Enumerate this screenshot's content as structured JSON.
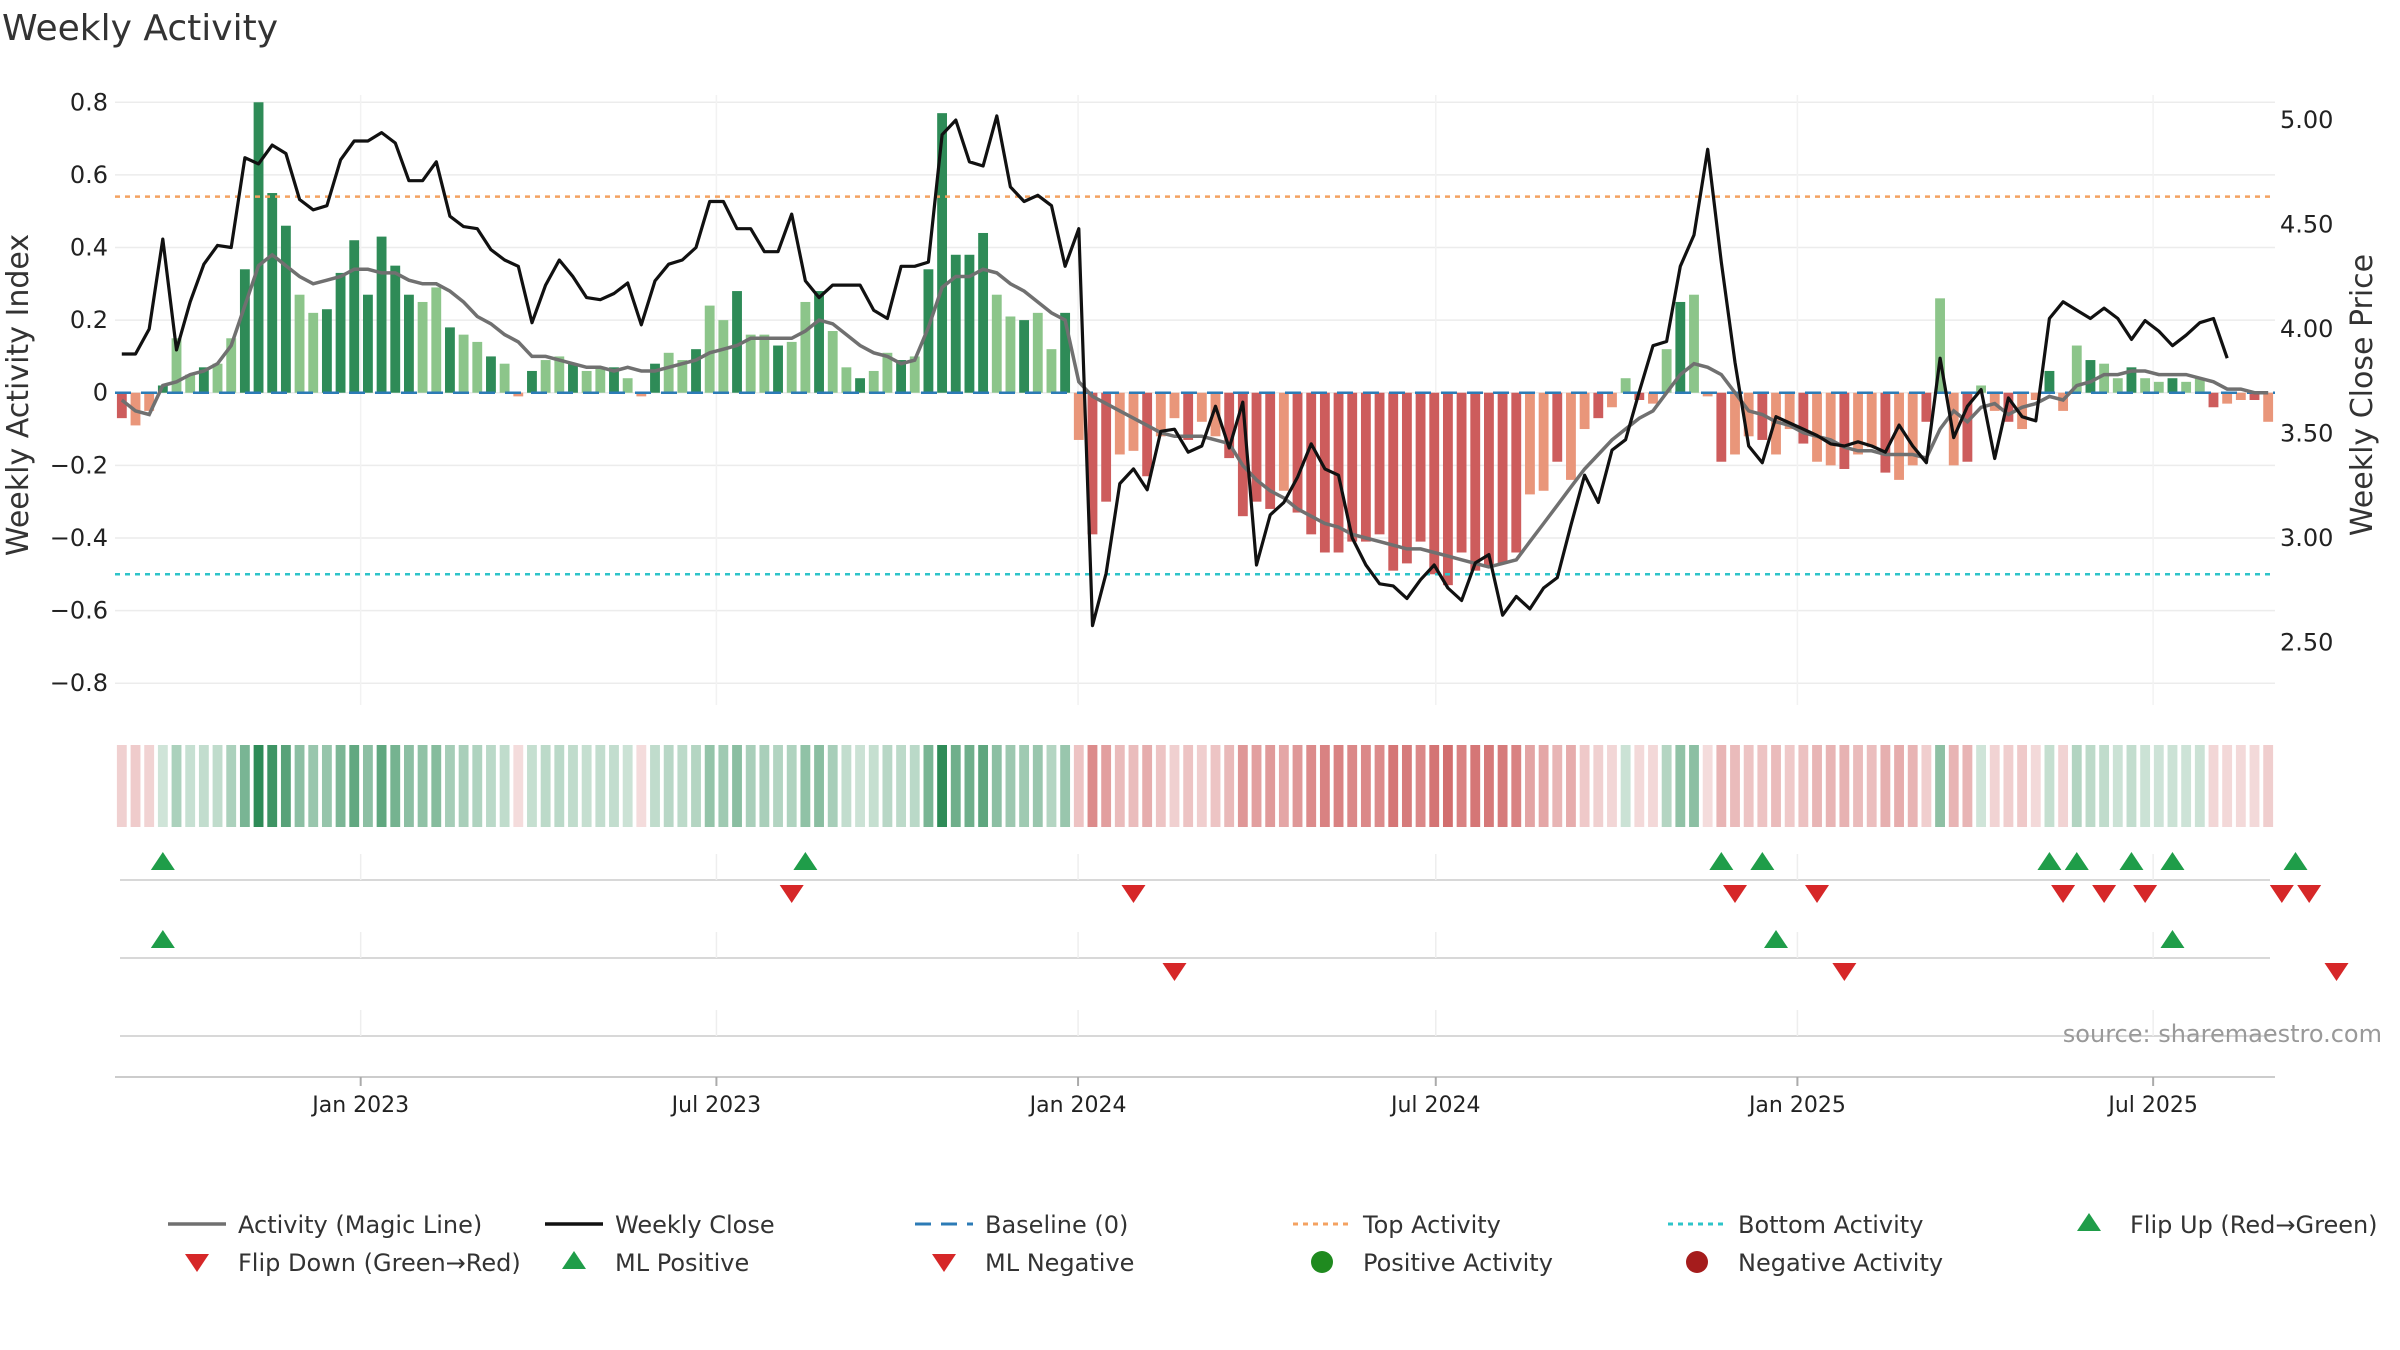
{
  "chart_data": {
    "type": "bar",
    "title": "Weekly Activity",
    "ylabel_left": "Weekly Activity Index",
    "ylabel_right": "Weekly Close Price",
    "ylim_left": [
      -0.86,
      0.82
    ],
    "ylim_right": [
      2.2,
      5.12
    ],
    "yticks_left": [
      "0.8",
      "0.6",
      "0.4",
      "0.2",
      "0",
      "−0.2",
      "−0.4",
      "−0.6",
      "−0.8"
    ],
    "yticks_left_values": [
      0.8,
      0.6,
      0.4,
      0.2,
      0,
      -0.2,
      -0.4,
      -0.6,
      -0.8
    ],
    "yticks_right": [
      "5.00",
      "4.50",
      "4.00",
      "3.50",
      "3.00",
      "2.50"
    ],
    "yticks_right_values": [
      5.0,
      4.5,
      4.0,
      3.5,
      3.0,
      2.5
    ],
    "x_start": "2022-08-29",
    "x_end": "2025-09-01",
    "x_ticks": [
      {
        "label": "Jan 2023",
        "date": "2023-01-01"
      },
      {
        "label": "Jul 2023",
        "date": "2023-07-01"
      },
      {
        "label": "Jan 2024",
        "date": "2024-01-01"
      },
      {
        "label": "Jul 2024",
        "date": "2024-07-01"
      },
      {
        "label": "Jan 2025",
        "date": "2025-01-01"
      },
      {
        "label": "Jul 2025",
        "date": "2025-07-01"
      }
    ],
    "activity": [
      -0.07,
      -0.09,
      -0.05,
      0.02,
      0.15,
      0.05,
      0.07,
      0.08,
      0.15,
      0.34,
      0.8,
      0.55,
      0.46,
      0.27,
      0.22,
      0.23,
      0.33,
      0.42,
      0.27,
      0.43,
      0.35,
      0.27,
      0.25,
      0.29,
      0.18,
      0.16,
      0.14,
      0.1,
      0.08,
      -0.01,
      0.06,
      0.09,
      0.1,
      0.08,
      0.06,
      0.07,
      0.07,
      0.04,
      -0.01,
      0.08,
      0.11,
      0.09,
      0.12,
      0.24,
      0.2,
      0.28,
      0.16,
      0.16,
      0.13,
      0.14,
      0.25,
      0.28,
      0.17,
      0.07,
      0.04,
      0.06,
      0.11,
      0.09,
      0.1,
      0.34,
      0.77,
      0.38,
      0.38,
      0.44,
      0.27,
      0.21,
      0.2,
      0.22,
      0.12,
      0.22,
      -0.13,
      -0.39,
      -0.3,
      -0.17,
      -0.16,
      -0.23,
      -0.12,
      -0.07,
      -0.13,
      -0.08,
      -0.12,
      -0.18,
      -0.34,
      -0.3,
      -0.32,
      -0.27,
      -0.33,
      -0.39,
      -0.44,
      -0.44,
      -0.41,
      -0.41,
      -0.39,
      -0.49,
      -0.47,
      -0.41,
      -0.5,
      -0.53,
      -0.44,
      -0.49,
      -0.48,
      -0.47,
      -0.44,
      -0.28,
      -0.27,
      -0.19,
      -0.24,
      -0.1,
      -0.07,
      -0.04,
      0.04,
      -0.02,
      -0.03,
      0.12,
      0.25,
      0.27,
      -0.01,
      -0.19,
      -0.17,
      -0.12,
      -0.13,
      -0.17,
      -0.1,
      -0.14,
      -0.19,
      -0.2,
      -0.21,
      -0.17,
      -0.15,
      -0.22,
      -0.24,
      -0.2,
      -0.08,
      0.26,
      -0.2,
      -0.19,
      0.02,
      -0.05,
      -0.08,
      -0.1,
      -0.02,
      0.06,
      -0.05,
      0.13,
      0.09,
      0.08,
      0.04,
      0.07,
      0.04,
      0.03,
      0.04,
      0.03,
      0.04,
      -0.04,
      -0.03,
      -0.02,
      -0.02,
      -0.08
    ],
    "magic_line": [
      -0.02,
      -0.05,
      -0.06,
      0.02,
      0.03,
      0.05,
      0.06,
      0.08,
      0.13,
      0.24,
      0.35,
      0.38,
      0.35,
      0.32,
      0.3,
      0.31,
      0.32,
      0.34,
      0.34,
      0.33,
      0.33,
      0.31,
      0.3,
      0.3,
      0.28,
      0.25,
      0.21,
      0.19,
      0.16,
      0.14,
      0.1,
      0.1,
      0.09,
      0.08,
      0.07,
      0.07,
      0.06,
      0.07,
      0.06,
      0.06,
      0.07,
      0.08,
      0.09,
      0.11,
      0.12,
      0.13,
      0.15,
      0.15,
      0.15,
      0.15,
      0.17,
      0.2,
      0.19,
      0.16,
      0.13,
      0.11,
      0.1,
      0.08,
      0.09,
      0.18,
      0.29,
      0.32,
      0.32,
      0.34,
      0.33,
      0.3,
      0.28,
      0.25,
      0.22,
      0.2,
      0.03,
      -0.01,
      -0.03,
      -0.05,
      -0.07,
      -0.09,
      -0.11,
      -0.12,
      -0.12,
      -0.12,
      -0.13,
      -0.14,
      -0.2,
      -0.24,
      -0.27,
      -0.29,
      -0.32,
      -0.34,
      -0.36,
      -0.37,
      -0.39,
      -0.4,
      -0.41,
      -0.42,
      -0.43,
      -0.43,
      -0.44,
      -0.45,
      -0.46,
      -0.47,
      -0.48,
      -0.47,
      -0.46,
      -0.41,
      -0.36,
      -0.31,
      -0.26,
      -0.21,
      -0.17,
      -0.13,
      -0.1,
      -0.07,
      -0.05,
      0.0,
      0.05,
      0.08,
      0.07,
      0.05,
      0.0,
      -0.05,
      -0.06,
      -0.08,
      -0.09,
      -0.11,
      -0.12,
      -0.13,
      -0.15,
      -0.16,
      -0.16,
      -0.17,
      -0.17,
      -0.17,
      -0.18,
      -0.1,
      -0.05,
      -0.08,
      -0.04,
      -0.03,
      -0.06,
      -0.04,
      -0.03,
      -0.01,
      -0.02,
      0.02,
      0.03,
      0.05,
      0.05,
      0.06,
      0.06,
      0.05,
      0.05,
      0.05,
      0.04,
      0.03,
      0.01,
      0.01,
      0.0,
      0.0
    ],
    "close": [
      3.88,
      3.88,
      4.0,
      4.43,
      3.9,
      4.13,
      4.31,
      4.4,
      4.39,
      4.82,
      4.79,
      4.88,
      4.84,
      4.62,
      4.57,
      4.59,
      4.81,
      4.9,
      4.9,
      4.94,
      4.89,
      4.71,
      4.71,
      4.8,
      4.54,
      4.49,
      4.48,
      4.38,
      4.33,
      4.3,
      4.03,
      4.21,
      4.33,
      4.25,
      4.15,
      4.14,
      4.17,
      4.22,
      4.02,
      4.23,
      4.31,
      4.33,
      4.39,
      4.61,
      4.61,
      4.48,
      4.48,
      4.37,
      4.37,
      4.55,
      4.23,
      4.15,
      4.21,
      4.21,
      4.21,
      4.09,
      4.05,
      4.3,
      4.3,
      4.32,
      4.93,
      5.0,
      4.8,
      4.78,
      5.02,
      4.68,
      4.61,
      4.64,
      4.59,
      4.3,
      4.48,
      2.58,
      2.83,
      3.26,
      3.33,
      3.23,
      3.51,
      3.52,
      3.41,
      3.44,
      3.63,
      3.43,
      3.65,
      2.87,
      3.11,
      3.17,
      3.29,
      3.45,
      3.33,
      3.3,
      3.0,
      2.87,
      2.78,
      2.77,
      2.71,
      2.8,
      2.87,
      2.76,
      2.7,
      2.88,
      2.92,
      2.63,
      2.72,
      2.66,
      2.76,
      2.81,
      3.06,
      3.3,
      3.17,
      3.42,
      3.47,
      3.7,
      3.92,
      3.94,
      4.3,
      4.45,
      4.86,
      4.32,
      3.84,
      3.44,
      3.36,
      3.58,
      3.55,
      3.52,
      3.49,
      3.45,
      3.44,
      3.46,
      3.44,
      3.41,
      3.54,
      3.44,
      3.36,
      3.86,
      3.48,
      3.63,
      3.71,
      3.38,
      3.67,
      3.58,
      3.56,
      4.05,
      4.13,
      4.09,
      4.05,
      4.1,
      4.05,
      3.95,
      4.04,
      3.99,
      3.92,
      3.97,
      4.03,
      4.05,
      3.86
    ],
    "strip_values": [
      -0.07,
      -0.09,
      -0.05,
      0.02,
      0.15,
      0.05,
      0.07,
      0.08,
      0.15,
      0.34,
      0.8,
      0.55,
      0.46,
      0.27,
      0.22,
      0.23,
      0.33,
      0.42,
      0.27,
      0.43,
      0.35,
      0.27,
      0.25,
      0.29,
      0.18,
      0.16,
      0.14,
      0.1,
      0.08,
      -0.01,
      0.06,
      0.09,
      0.1,
      0.08,
      0.06,
      0.07,
      0.07,
      0.04,
      -0.01,
      0.08,
      0.11,
      0.09,
      0.12,
      0.24,
      0.2,
      0.28,
      0.16,
      0.16,
      0.13,
      0.14,
      0.25,
      0.28,
      0.17,
      0.07,
      0.04,
      0.06,
      0.11,
      0.09,
      0.1,
      0.34,
      0.77,
      0.38,
      0.38,
      0.44,
      0.27,
      0.21,
      0.2,
      0.22,
      0.12,
      0.22,
      -0.13,
      -0.39,
      -0.3,
      -0.17,
      -0.16,
      -0.23,
      -0.12,
      -0.07,
      -0.13,
      -0.08,
      -0.12,
      -0.18,
      -0.34,
      -0.3,
      -0.32,
      -0.27,
      -0.33,
      -0.39,
      -0.44,
      -0.44,
      -0.41,
      -0.41,
      -0.39,
      -0.49,
      -0.47,
      -0.41,
      -0.5,
      -0.53,
      -0.44,
      -0.49,
      -0.48,
      -0.47,
      -0.44,
      -0.28,
      -0.27,
      -0.19,
      -0.24,
      -0.1,
      -0.07,
      -0.04,
      0.04,
      -0.02,
      -0.03,
      0.12,
      0.25,
      0.27,
      -0.01,
      -0.19,
      -0.17,
      -0.12,
      -0.13,
      -0.17,
      -0.1,
      -0.14,
      -0.19,
      -0.2,
      -0.21,
      -0.17,
      -0.15,
      -0.22,
      -0.24,
      -0.2,
      -0.08,
      0.26,
      -0.2,
      -0.19,
      0.02,
      -0.05,
      -0.08,
      -0.1,
      -0.02,
      0.06,
      -0.05,
      0.13,
      0.09,
      0.08,
      0.04,
      0.07,
      0.04,
      0.03,
      0.04,
      0.03,
      0.04,
      -0.04,
      -0.03,
      -0.02,
      -0.02,
      -0.08
    ],
    "top_activity": 0.54,
    "bottom_activity": -0.5,
    "flip_up_weeks": [
      3,
      50,
      117,
      120,
      141,
      143,
      147,
      150,
      159
    ],
    "flip_down_weeks": [
      49,
      74,
      118,
      124,
      142,
      145,
      148,
      158,
      160
    ],
    "ml_positive_weeks": [
      3,
      121,
      150
    ],
    "ml_negative_weeks": [
      77,
      126,
      162
    ],
    "colors": {
      "pos_strong": "#2e8b57",
      "pos_light": "#8cc58a",
      "neg_strong": "#cd5c5c",
      "neg_light": "#e9967a",
      "magic_line": "#707070",
      "close": "#111111",
      "baseline": "#2c7bb6",
      "top": "#f4a261",
      "bottom": "#2ec4c9",
      "triangle_up": "#1f9d49",
      "triangle_down": "#d62728",
      "positive_dot": "#1f8a1f",
      "negative_dot": "#a51c1c"
    },
    "legend": [
      {
        "label": "Activity (Magic Line)",
        "kind": "line",
        "color": "#707070"
      },
      {
        "label": "Weekly Close",
        "kind": "line",
        "color": "#111111"
      },
      {
        "label": "Baseline (0)",
        "kind": "dashed",
        "color": "#2c7bb6"
      },
      {
        "label": "Top Activity",
        "kind": "dotted",
        "color": "#f4a261"
      },
      {
        "label": "Bottom Activity",
        "kind": "dotted",
        "color": "#2ec4c9"
      },
      {
        "label": "Flip Up (Red→Green)",
        "kind": "tri-up",
        "color": "#1f9d49"
      },
      {
        "label": "Flip Down (Green→Red)",
        "kind": "tri-down",
        "color": "#d62728"
      },
      {
        "label": "ML Positive",
        "kind": "tri-up",
        "color": "#1f9d49"
      },
      {
        "label": "ML Negative",
        "kind": "tri-down",
        "color": "#d62728"
      },
      {
        "label": "Positive Activity",
        "kind": "dot",
        "color": "#1f8a1f"
      },
      {
        "label": "Negative Activity",
        "kind": "dot",
        "color": "#a51c1c"
      }
    ],
    "source": "source: sharemaestro.com"
  }
}
